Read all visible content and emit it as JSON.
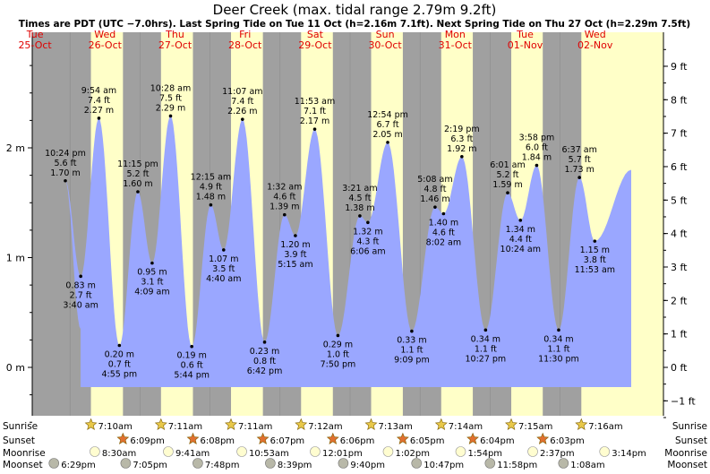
{
  "header": {
    "title": "Deer Creek (max. tidal range 2.79m 9.2ft)",
    "subtitle": "Times are PDT (UTC −7.0hrs). Last Spring Tide on Tue 11 Oct (h=2.16m 7.1ft). Next Spring Tide on Thu 27 Oct (h=2.29m 7.5ft)"
  },
  "colors": {
    "night": "#a0a0a0",
    "day": "#ffffc8",
    "tide_fill": "#9aa7ff",
    "axis": "#000000",
    "day_label": "#e00000"
  },
  "chart_data": {
    "type": "area",
    "title": "Deer Creek (max. tidal range 2.79m 9.2ft)",
    "subtitle": "Times are PDT (UTC −7.0hrs). Last Spring Tide on Tue 11 Oct (h=2.16m 7.1ft). Next Spring Tide on Thu 27 Oct (h=2.29m 7.5ft)",
    "x_unit": "date/time (PDT)",
    "y_left_unit": "m",
    "y_right_unit": "ft",
    "ylim_m": [
      -0.6,
      2.8
    ],
    "left_ticks": [
      {
        "v": 0,
        "label": "0 m"
      },
      {
        "v": 1,
        "label": "1 m"
      },
      {
        "v": 2,
        "label": "2 m"
      }
    ],
    "right_ticks": [
      {
        "v": -1,
        "label": "−1 ft"
      },
      {
        "v": 0,
        "label": "0 ft"
      },
      {
        "v": 1,
        "label": "1 ft"
      },
      {
        "v": 2,
        "label": "2 ft"
      },
      {
        "v": 3,
        "label": "3 ft"
      },
      {
        "v": 4,
        "label": "4 ft"
      },
      {
        "v": 5,
        "label": "5 ft"
      },
      {
        "v": 6,
        "label": "6 ft"
      },
      {
        "v": 7,
        "label": "7 ft"
      },
      {
        "v": 8,
        "label": "8 ft"
      },
      {
        "v": 9,
        "label": "9 ft"
      }
    ],
    "days": [
      {
        "weekday": "Tue",
        "date": "25-Oct"
      },
      {
        "weekday": "Wed",
        "date": "26-Oct"
      },
      {
        "weekday": "Thu",
        "date": "27-Oct"
      },
      {
        "weekday": "Fri",
        "date": "28-Oct"
      },
      {
        "weekday": "Sat",
        "date": "29-Oct"
      },
      {
        "weekday": "Sun",
        "date": "30-Oct"
      },
      {
        "weekday": "Mon",
        "date": "31-Oct"
      },
      {
        "weekday": "Tue",
        "date": "01-Nov"
      },
      {
        "weekday": "Wed",
        "date": "02-Nov"
      }
    ],
    "tides": [
      {
        "day": 0,
        "time": "10:24 pm",
        "m": "1.70 m",
        "ft": "5.6 ft",
        "h": 1.7,
        "type": "high"
      },
      {
        "day": 1,
        "time": "3:40 am",
        "m": "0.83 m",
        "ft": "2.7 ft",
        "h": 0.83,
        "type": "low"
      },
      {
        "day": 1,
        "time": "9:54 am",
        "m": "2.27 m",
        "ft": "7.4 ft",
        "h": 2.27,
        "type": "high"
      },
      {
        "day": 1,
        "time": "4:55 pm",
        "m": "0.20 m",
        "ft": "0.7 ft",
        "h": 0.2,
        "type": "low"
      },
      {
        "day": 1,
        "time": "11:15 pm",
        "m": "1.60 m",
        "ft": "5.2 ft",
        "h": 1.6,
        "type": "high"
      },
      {
        "day": 2,
        "time": "4:09 am",
        "m": "0.95 m",
        "ft": "3.1 ft",
        "h": 0.95,
        "type": "low"
      },
      {
        "day": 2,
        "time": "10:28 am",
        "m": "2.29 m",
        "ft": "7.5 ft",
        "h": 2.29,
        "type": "high"
      },
      {
        "day": 2,
        "time": "5:44 pm",
        "m": "0.19 m",
        "ft": "0.6 ft",
        "h": 0.19,
        "type": "low"
      },
      {
        "day": 3,
        "time": "12:15 am",
        "m": "1.48 m",
        "ft": "4.9 ft",
        "h": 1.48,
        "type": "high"
      },
      {
        "day": 3,
        "time": "4:40 am",
        "m": "1.07 m",
        "ft": "3.5 ft",
        "h": 1.07,
        "type": "low"
      },
      {
        "day": 3,
        "time": "11:07 am",
        "m": "2.26 m",
        "ft": "7.4 ft",
        "h": 2.26,
        "type": "high"
      },
      {
        "day": 3,
        "time": "6:42 pm",
        "m": "0.23 m",
        "ft": "0.8 ft",
        "h": 0.23,
        "type": "low"
      },
      {
        "day": 4,
        "time": "1:32 am",
        "m": "1.39 m",
        "ft": "4.6 ft",
        "h": 1.39,
        "type": "high"
      },
      {
        "day": 4,
        "time": "5:15 am",
        "m": "1.20 m",
        "ft": "3.9 ft",
        "h": 1.2,
        "type": "low"
      },
      {
        "day": 4,
        "time": "11:53 am",
        "m": "2.17 m",
        "ft": "7.1 ft",
        "h": 2.17,
        "type": "high"
      },
      {
        "day": 4,
        "time": "7:50 pm",
        "m": "0.29 m",
        "ft": "1.0 ft",
        "h": 0.29,
        "type": "low"
      },
      {
        "day": 5,
        "time": "3:21 am",
        "m": "1.38 m",
        "ft": "4.5 ft",
        "h": 1.38,
        "type": "high"
      },
      {
        "day": 5,
        "time": "6:06 am",
        "m": "1.32 m",
        "ft": "4.3 ft",
        "h": 1.32,
        "type": "low"
      },
      {
        "day": 5,
        "time": "12:54 pm",
        "m": "2.05 m",
        "ft": "6.7 ft",
        "h": 2.05,
        "type": "high"
      },
      {
        "day": 5,
        "time": "9:09 pm",
        "m": "0.33 m",
        "ft": "1.1 ft",
        "h": 0.33,
        "type": "low"
      },
      {
        "day": 6,
        "time": "5:08 am",
        "m": "1.46 m",
        "ft": "4.8 ft",
        "h": 1.46,
        "type": "high"
      },
      {
        "day": 6,
        "time": "8:02 am",
        "m": "1.40 m",
        "ft": "4.6 ft",
        "h": 1.4,
        "type": "low"
      },
      {
        "day": 6,
        "time": "2:19 pm",
        "m": "1.92 m",
        "ft": "6.3 ft",
        "h": 1.92,
        "type": "high"
      },
      {
        "day": 6,
        "time": "10:27 pm",
        "m": "0.34 m",
        "ft": "1.1 ft",
        "h": 0.34,
        "type": "low"
      },
      {
        "day": 7,
        "time": "6:01 am",
        "m": "1.59 m",
        "ft": "5.2 ft",
        "h": 1.59,
        "type": "high"
      },
      {
        "day": 7,
        "time": "10:24 am",
        "m": "1.34 m",
        "ft": "4.4 ft",
        "h": 1.34,
        "type": "low"
      },
      {
        "day": 7,
        "time": "3:58 pm",
        "m": "1.84 m",
        "ft": "6.0 ft",
        "h": 1.84,
        "type": "high"
      },
      {
        "day": 7,
        "time": "11:30 pm",
        "m": "0.34 m",
        "ft": "1.1 ft",
        "h": 0.34,
        "type": "low"
      },
      {
        "day": 8,
        "time": "6:37 am",
        "m": "1.73 m",
        "ft": "5.7 ft",
        "h": 1.73,
        "type": "high"
      },
      {
        "day": 8,
        "time": "11:53 am",
        "m": "1.15 m",
        "ft": "3.8 ft",
        "h": 1.15,
        "type": "low"
      }
    ],
    "sunrise": [
      "7:10am",
      "7:11am",
      "7:11am",
      "7:12am",
      "7:13am",
      "7:14am",
      "7:15am",
      "7:16am"
    ],
    "sunset": [
      "6:09pm",
      "6:08pm",
      "6:07pm",
      "6:06pm",
      "6:05pm",
      "6:04pm",
      "6:03pm"
    ],
    "moonrise": [
      "8:30am",
      "9:41am",
      "10:53am",
      "12:01pm",
      "1:02pm",
      "1:54pm",
      "2:37pm",
      "3:14pm"
    ],
    "moonset": [
      "6:29pm",
      "7:05pm",
      "7:48pm",
      "8:39pm",
      "9:40pm",
      "10:47pm",
      "11:58pm",
      "1:08am"
    ]
  },
  "bottom": {
    "sunrise_label": "Sunrise",
    "sunset_label": "Sunset",
    "moonrise_label": "Moonrise",
    "moonset_label": "Moonset"
  }
}
